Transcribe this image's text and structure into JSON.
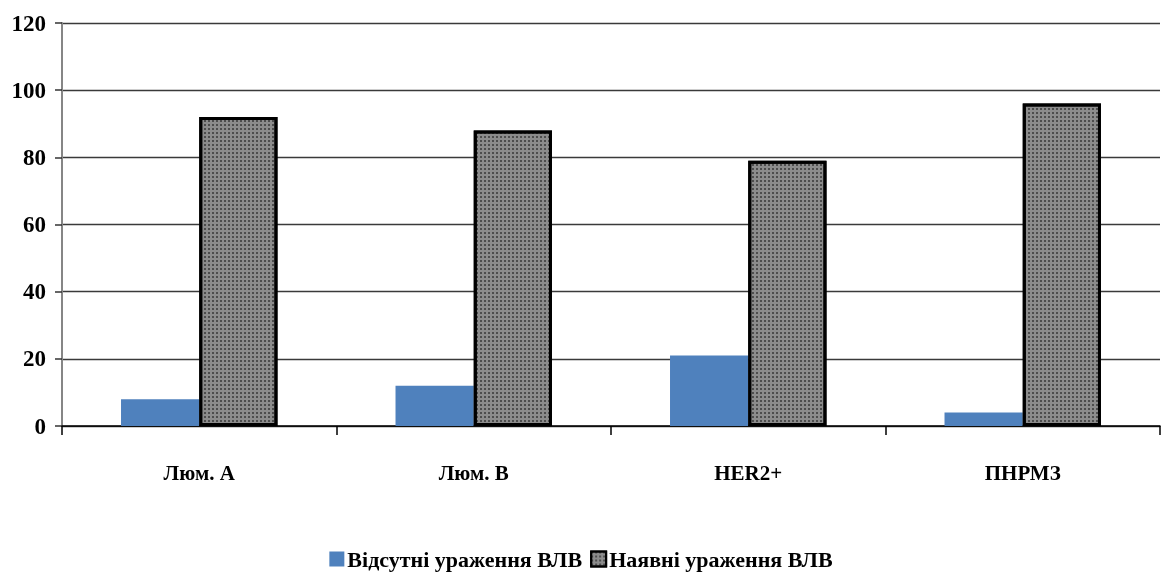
{
  "chart_data": {
    "type": "bar",
    "categories": [
      "Люм. А",
      "Люм. В",
      "HER2+",
      "ПНРМЗ"
    ],
    "series": [
      {
        "name": "Відсутні ураження ВЛВ",
        "color": "#4f81bd",
        "values": [
          8,
          12,
          21,
          4
        ]
      },
      {
        "name": "Наявні ураження ВЛВ",
        "color": "#8c8c8c",
        "values": [
          92,
          88,
          79,
          96
        ]
      }
    ],
    "ylim": [
      0,
      120
    ],
    "yticks": [
      0,
      20,
      40,
      60,
      80,
      100,
      120
    ],
    "grid": "y",
    "legend": "bottom"
  }
}
